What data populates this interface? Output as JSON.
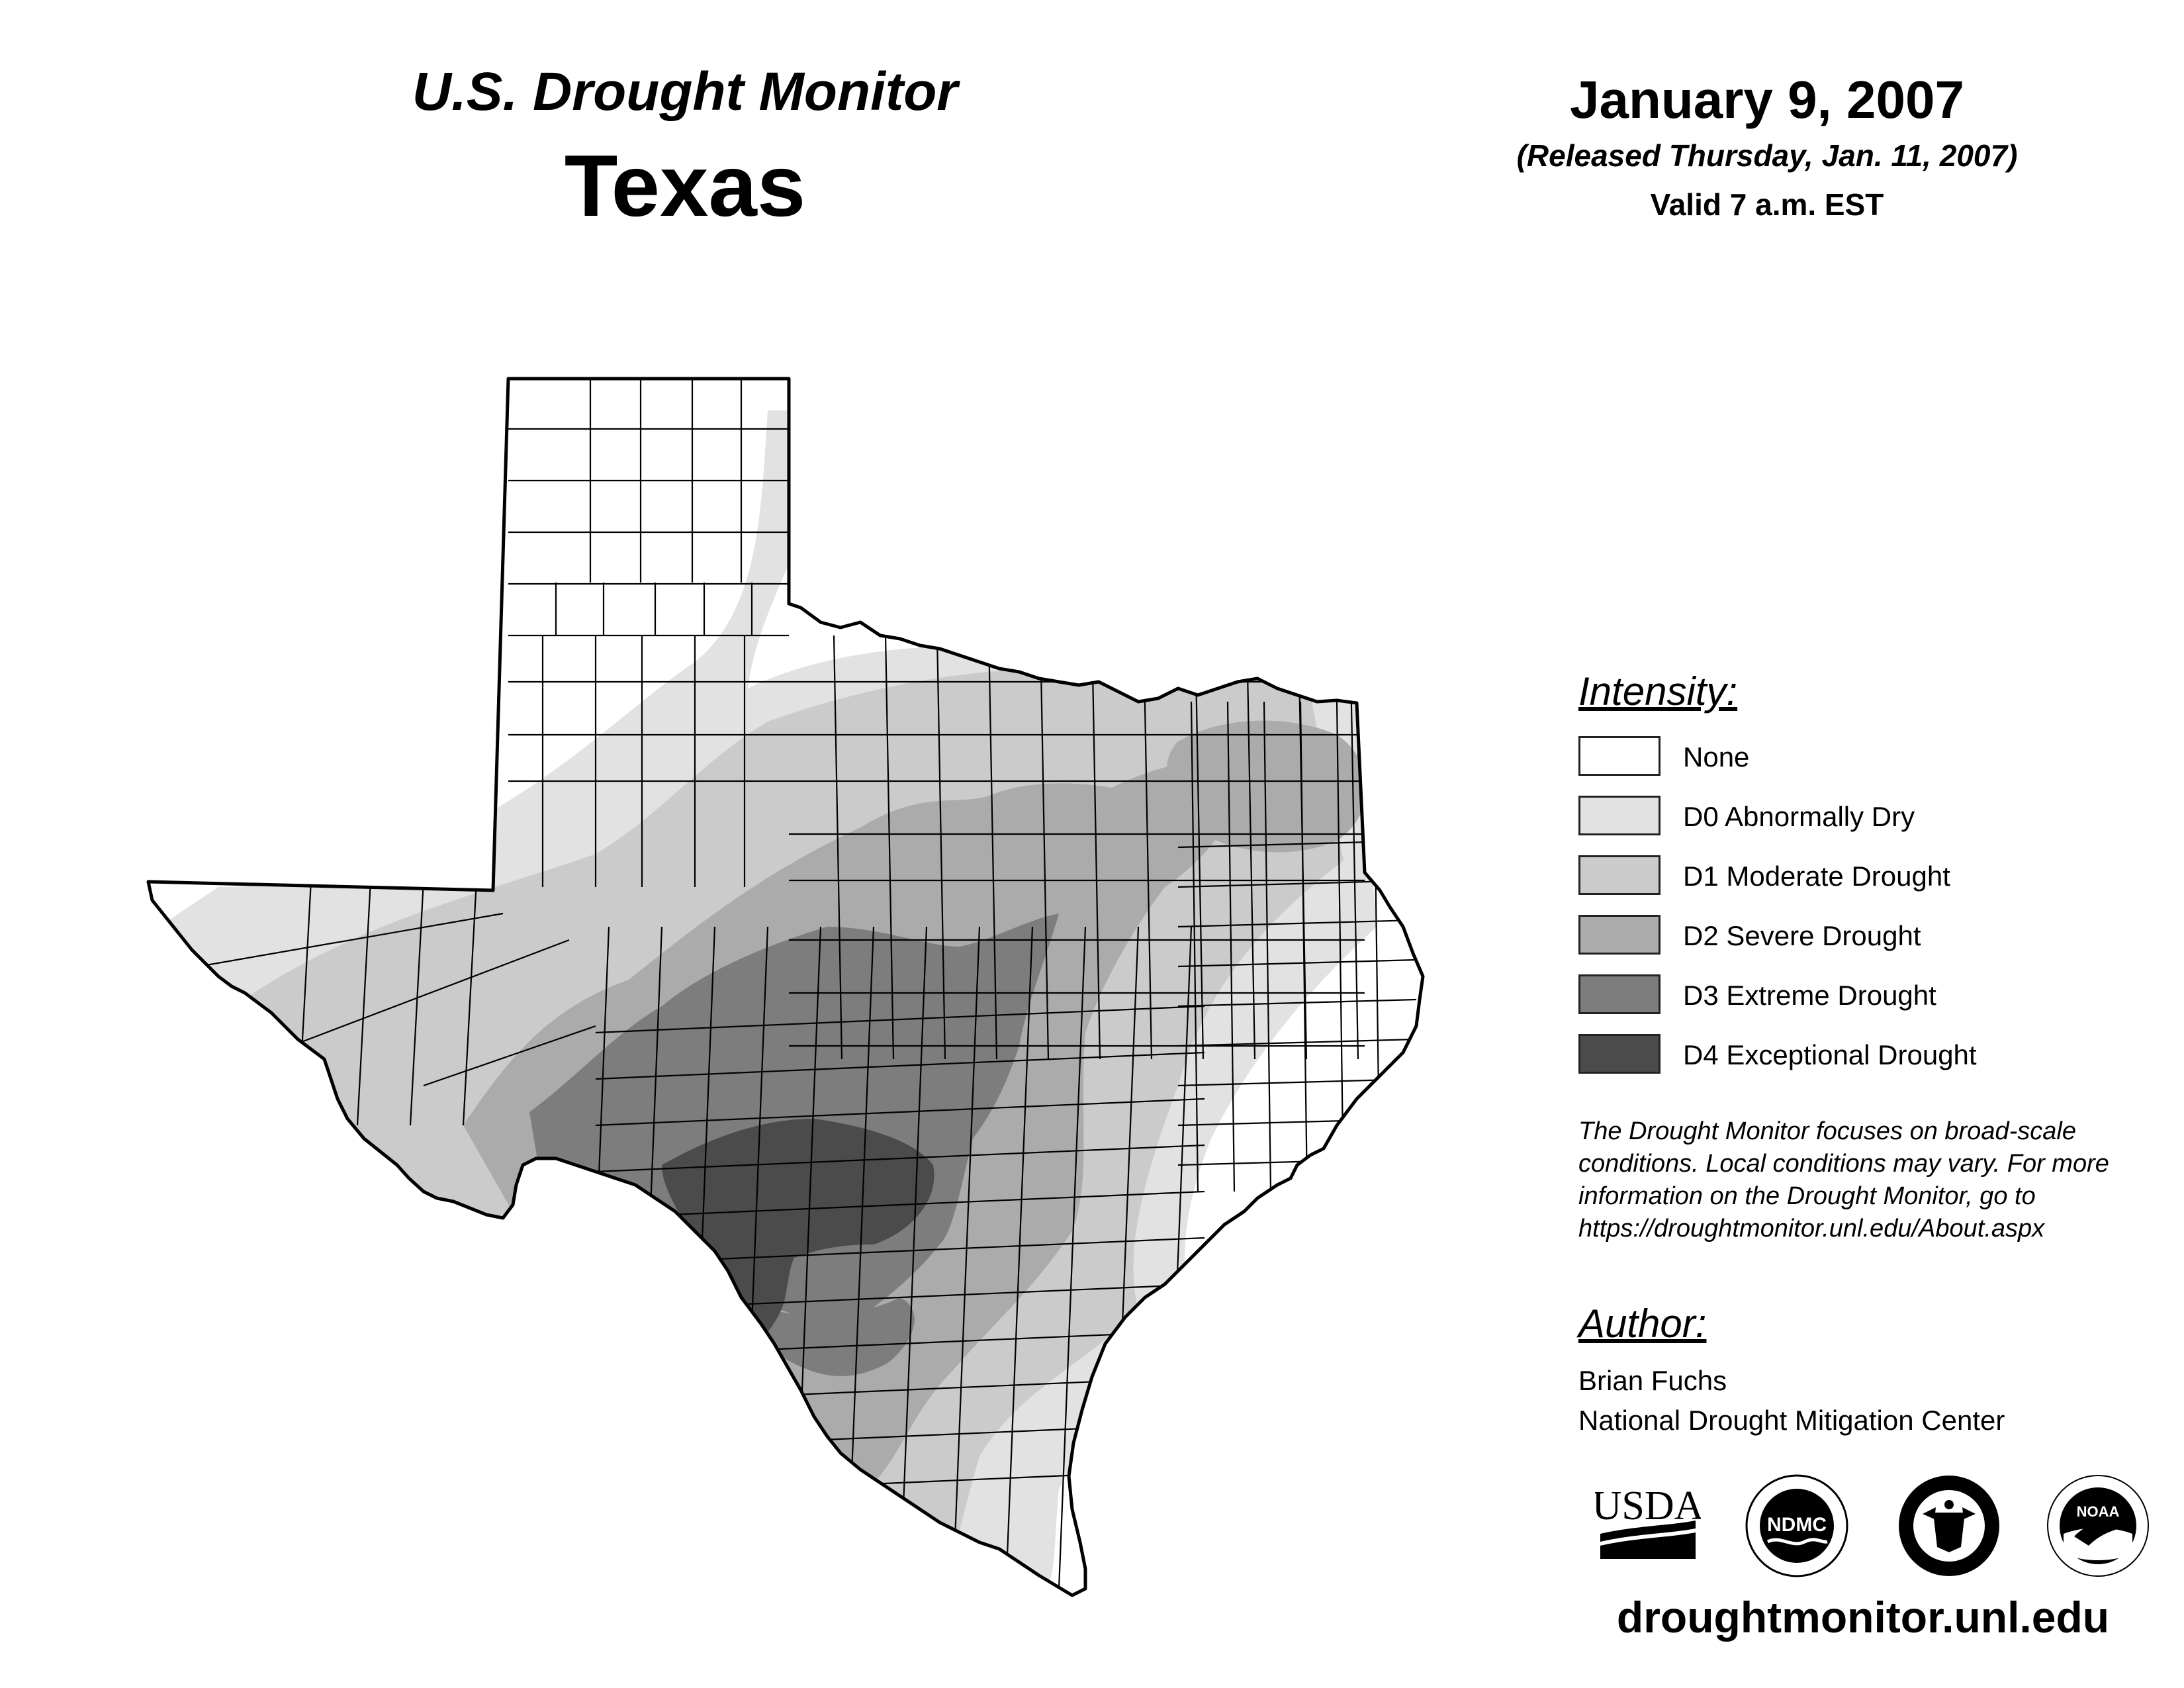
{
  "header": {
    "title": "U.S. Drought Monitor",
    "state": "Texas",
    "date": "January 9, 2007",
    "released": "(Released Thursday, Jan. 11, 2007)",
    "valid": "Valid 7 a.m. EST"
  },
  "legend": {
    "title": "Intensity:",
    "items": [
      {
        "label": "None",
        "color": "#ffffff"
      },
      {
        "label": "D0 Abnormally Dry",
        "color": "#e2e2e2"
      },
      {
        "label": "D1 Moderate Drought",
        "color": "#cbcbcb"
      },
      {
        "label": "D2 Severe Drought",
        "color": "#ababab"
      },
      {
        "label": "D3 Extreme Drought",
        "color": "#7d7d7d"
      },
      {
        "label": "D4 Exceptional Drought",
        "color": "#4b4b4b"
      }
    ]
  },
  "note": {
    "lines": [
      "The Drought Monitor focuses on broad-scale",
      "conditions. Local conditions may vary. For more",
      "information on the Drought Monitor, go to",
      "https://droughtmonitor.unl.edu/About.aspx"
    ]
  },
  "author": {
    "title": "Author:",
    "name": "Brian Fuchs",
    "org": "National Drought Mitigation Center"
  },
  "logos": {
    "usda": "USDA",
    "ndmc": "NDMC",
    "noaa": "NOAA"
  },
  "footer": {
    "url": "droughtmonitor.unl.edu"
  }
}
